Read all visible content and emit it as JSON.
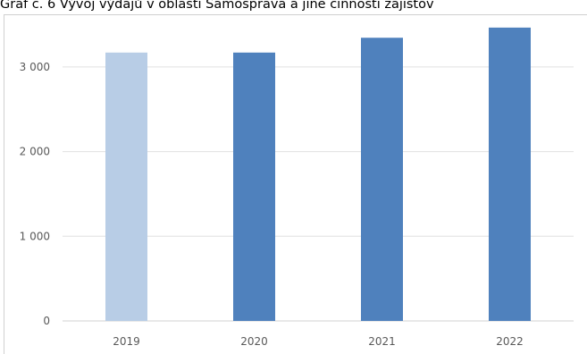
{
  "caption": "Graf č. 6 Vývoj výdajů v oblasti Samospráva a jiné činnosti zajišťov",
  "chart_data": {
    "type": "bar",
    "title": "Graf č. 6 Vývoj výdajů v oblasti Samospráva a jiné činnosti zajišťov",
    "categories": [
      "2019",
      "2020",
      "2021",
      "2022"
    ],
    "values": [
      3170,
      3170,
      3345,
      3465
    ],
    "bar_colors": [
      "#b8cde6",
      "#4f81bd",
      "#4f81bd",
      "#4f81bd"
    ],
    "ylim": [
      0,
      3500
    ],
    "yticks": [
      0,
      1000,
      2000,
      3000
    ],
    "ytick_labels": [
      "0",
      "1 000",
      "2 000",
      "3 000"
    ],
    "grid": true,
    "legend": "none",
    "gridline_color": "#e0e0e0",
    "xlabel": "",
    "ylabel": ""
  }
}
